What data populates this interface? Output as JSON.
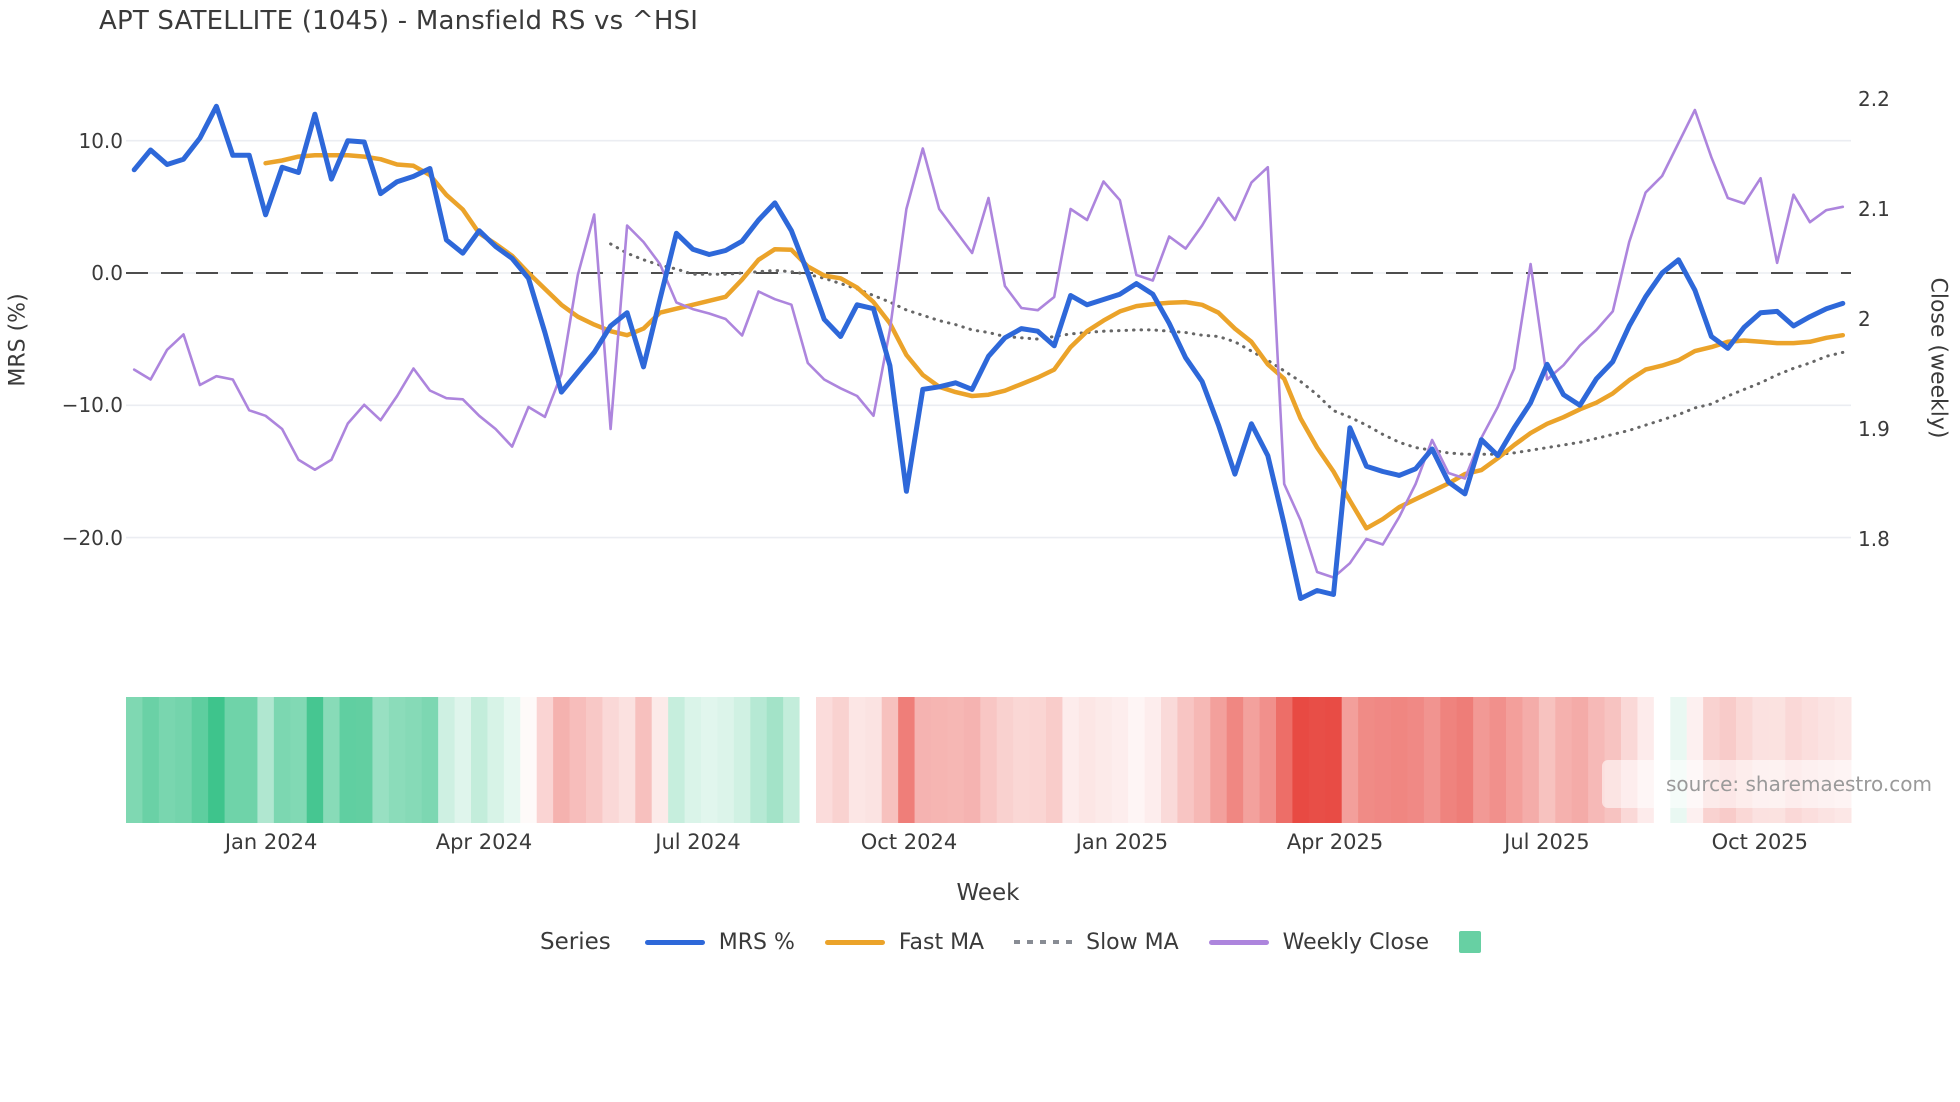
{
  "title": "APT SATELLITE (1045) - Mansfield RS vs ^HSI",
  "watermark": "source: sharemaestro.com",
  "axes": {
    "left_label": "MRS (%)",
    "right_label": "Close (weekly)",
    "x_label": "Week",
    "left_ticks": [
      {
        "label": "10.0",
        "value": 10
      },
      {
        "label": "0.0",
        "value": 0
      },
      {
        "label": "−10.0",
        "value": -10
      },
      {
        "label": "−20.0",
        "value": -20
      }
    ],
    "right_ticks": [
      {
        "label": "2.2",
        "value": 2.2
      },
      {
        "label": "2.1",
        "value": 2.1
      },
      {
        "label": "2",
        "value": 2.0
      },
      {
        "label": "1.9",
        "value": 1.9
      },
      {
        "label": "1.8",
        "value": 1.8
      }
    ]
  },
  "legend": {
    "title": "Series",
    "items": [
      {
        "label": "MRS %",
        "type": "line",
        "color": "#2e68d9"
      },
      {
        "label": "Fast MA",
        "type": "line",
        "color": "#eba32a"
      },
      {
        "label": "Slow MA",
        "type": "dotted",
        "color": "#888c94"
      },
      {
        "label": "Weekly Close",
        "type": "line",
        "color": "#ad85dd"
      },
      {
        "label": "",
        "type": "square",
        "color": "#67d0a3"
      }
    ]
  },
  "chart_data": {
    "type": "line",
    "subtype": "multi-series weekly with heatmap strip",
    "x_unit": "week",
    "x_range_note": "weekly points Nov 2023 - Nov 2025",
    "x_ticks": [
      {
        "label": "Jan 2024",
        "pos": 8.83
      },
      {
        "label": "Apr 2024",
        "pos": 21.79
      },
      {
        "label": "Jul 2024",
        "pos": 34.82
      },
      {
        "label": "Oct 2024",
        "pos": 47.66
      },
      {
        "label": "Jan 2025",
        "pos": 60.62
      },
      {
        "label": "Apr 2025",
        "pos": 73.59
      },
      {
        "label": "Jul 2025",
        "pos": 86.49
      },
      {
        "label": "Oct 2025",
        "pos": 99.45
      }
    ],
    "left_axis": {
      "label": "MRS (%)",
      "ticks": [
        10.0,
        0.0,
        -10.0,
        -20.0
      ],
      "zero_line_dashed": true
    },
    "right_axis": {
      "label": "Close (weekly)",
      "ticks": [
        2.2,
        2.1,
        2.0,
        1.9,
        1.8
      ]
    },
    "grid": "horizontal light gridlines at left-axis ticks",
    "legend_position": "bottom center",
    "series": [
      {
        "name": "MRS %",
        "axis": "left",
        "color": "#2e68d9",
        "style": "solid",
        "width": 5,
        "start_week": 0,
        "values": [
          7.8,
          9.3,
          8.2,
          8.6,
          10.2,
          12.6,
          8.9,
          8.9,
          4.4,
          8.0,
          7.6,
          12.0,
          7.1,
          10.0,
          9.9,
          6.0,
          6.9,
          7.3,
          7.9,
          2.5,
          1.5,
          3.2,
          2.0,
          1.1,
          -0.4,
          -4.5,
          -9.0,
          -7.5,
          -6.0,
          -4.0,
          -3.0,
          -7.1,
          -2.0,
          3.0,
          1.8,
          1.4,
          1.7,
          2.4,
          4.0,
          5.3,
          3.2,
          0.0,
          -3.5,
          -4.8,
          -2.4,
          -2.7,
          -7.0,
          -16.5,
          -8.8,
          -8.6,
          -8.3,
          -8.8,
          -6.3,
          -4.9,
          -4.2,
          -4.4,
          -5.5,
          -1.7,
          -2.4,
          -2.0,
          -1.6,
          -0.8,
          -1.6,
          -3.8,
          -6.4,
          -8.2,
          -11.5,
          -15.2,
          -11.4,
          -13.8,
          -19.0,
          -24.6,
          -24.0,
          -24.3,
          -11.7,
          -14.6,
          -15.0,
          -15.3,
          -14.8,
          -13.3,
          -15.8,
          -16.7,
          -12.6,
          -13.8,
          -11.7,
          -9.8,
          -6.9,
          -9.2,
          -10.0,
          -8.0,
          -6.7,
          -4.0,
          -1.8,
          0.0,
          1.0,
          -1.3,
          -4.8,
          -5.7,
          -4.1,
          -3.0,
          -2.9,
          -4.0,
          -3.3,
          -2.7,
          -2.3
        ]
      },
      {
        "name": "Fast MA",
        "axis": "left",
        "color": "#eba32a",
        "style": "solid",
        "width": 4.5,
        "start_week": 8,
        "values": [
          8.3,
          8.5,
          8.8,
          8.9,
          8.9,
          8.9,
          8.8,
          8.6,
          8.2,
          8.1,
          7.4,
          5.9,
          4.8,
          3.0,
          2.2,
          1.3,
          0.0,
          -1.2,
          -2.4,
          -3.3,
          -3.9,
          -4.4,
          -4.7,
          -4.2,
          -3.0,
          -2.7,
          -2.4,
          -2.1,
          -1.8,
          -0.5,
          1.0,
          1.8,
          1.75,
          0.5,
          -0.2,
          -0.4,
          -1.1,
          -2.2,
          -3.8,
          -6.2,
          -7.7,
          -8.6,
          -9.0,
          -9.3,
          -9.2,
          -8.9,
          -8.4,
          -7.9,
          -7.3,
          -5.6,
          -4.4,
          -3.6,
          -2.9,
          -2.5,
          -2.35,
          -2.25,
          -2.2,
          -2.4,
          -3.0,
          -4.2,
          -5.2,
          -6.9,
          -8.0,
          -11.0,
          -13.2,
          -15.0,
          -17.2,
          -19.3,
          -18.6,
          -17.7,
          -17.1,
          -16.5,
          -15.9,
          -15.2,
          -14.9,
          -14.0,
          -13.0,
          -12.1,
          -11.4,
          -10.9,
          -10.3,
          -9.8,
          -9.1,
          -8.1,
          -7.3,
          -7.0,
          -6.6,
          -5.9,
          -5.6,
          -5.2,
          -5.1,
          -5.2,
          -5.3,
          -5.3,
          -5.2,
          -4.9,
          -4.7
        ]
      },
      {
        "name": "Slow MA",
        "axis": "left",
        "color": "#666666",
        "style": "dotted",
        "width": 3,
        "start_week": 29,
        "values": [
          2.2,
          1.5,
          1.0,
          0.6,
          0.3,
          -0.1,
          -0.1,
          -0.1,
          0.0,
          0.1,
          0.2,
          0.1,
          -0.1,
          -0.4,
          -0.8,
          -1.2,
          -1.7,
          -2.2,
          -2.8,
          -3.2,
          -3.6,
          -3.9,
          -4.3,
          -4.5,
          -4.8,
          -4.9,
          -5.0,
          -4.8,
          -4.6,
          -4.5,
          -4.4,
          -4.35,
          -4.3,
          -4.3,
          -4.4,
          -4.5,
          -4.7,
          -4.8,
          -5.2,
          -5.9,
          -6.6,
          -7.4,
          -8.2,
          -9.2,
          -10.4,
          -10.9,
          -11.5,
          -12.2,
          -12.8,
          -13.2,
          -13.4,
          -13.6,
          -13.7,
          -13.7,
          -13.7,
          -13.6,
          -13.4,
          -13.2,
          -13.0,
          -12.8,
          -12.5,
          -12.2,
          -11.9,
          -11.5,
          -11.1,
          -10.7,
          -10.2,
          -9.9,
          -9.3,
          -8.8,
          -8.3,
          -7.7,
          -7.2,
          -6.8,
          -6.3,
          -6.0
        ]
      },
      {
        "name": "Weekly Close",
        "axis": "right",
        "color": "#ad85dd",
        "style": "solid",
        "width": 2.6,
        "start_week": 0,
        "values": [
          1.954,
          1.945,
          1.972,
          1.986,
          1.94,
          1.948,
          1.945,
          1.917,
          1.912,
          1.9,
          1.872,
          1.863,
          1.872,
          1.905,
          1.922,
          1.908,
          1.93,
          1.955,
          1.935,
          1.928,
          1.927,
          1.912,
          1.9,
          1.884,
          1.92,
          1.911,
          1.95,
          2.04,
          2.095,
          1.9,
          2.085,
          2.07,
          2.05,
          2.015,
          2.009,
          2.005,
          2.0,
          1.985,
          2.025,
          2.018,
          2.013,
          1.96,
          1.945,
          1.937,
          1.93,
          1.912,
          1.99,
          2.1,
          2.155,
          2.1,
          2.08,
          2.06,
          2.11,
          2.03,
          2.01,
          2.008,
          2.02,
          2.1,
          2.09,
          2.125,
          2.108,
          2.04,
          2.035,
          2.075,
          2.064,
          2.085,
          2.11,
          2.09,
          2.124,
          2.138,
          1.85,
          1.817,
          1.77,
          1.765,
          1.778,
          1.8,
          1.795,
          1.82,
          1.85,
          1.89,
          1.86,
          1.855,
          1.892,
          1.92,
          1.955,
          2.05,
          1.945,
          1.958,
          1.976,
          1.99,
          2.007,
          2.07,
          2.115,
          2.13,
          2.16,
          2.19,
          2.147,
          2.11,
          2.105,
          2.128,
          2.051,
          2.113,
          2.088,
          2.099,
          2.102
        ]
      }
    ],
    "heatmap_strip": {
      "source_series": "MRS %",
      "positive_color": "#3ec48c",
      "negative_color": "#e84a43",
      "neutral_color": "#ffffff",
      "position": "below plot, one cell per week"
    },
    "colors": {
      "grid": "#ebedf2",
      "zero_dash": "#4d4d4d",
      "background": "#ffffff",
      "text": "#3a3a3a",
      "watermark": "#9a9a9a"
    }
  }
}
